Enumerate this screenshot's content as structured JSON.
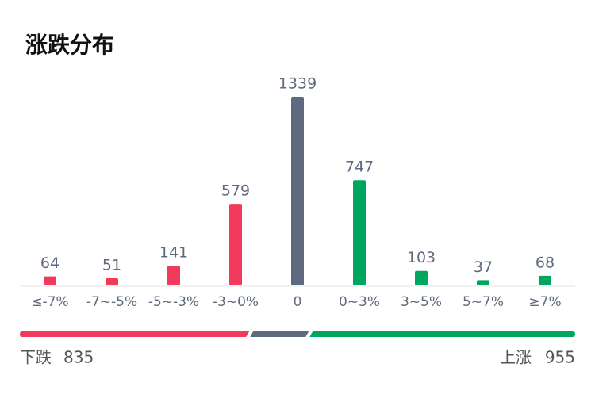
{
  "chart_data": {
    "type": "bar",
    "title": "涨跌分布",
    "categories": [
      "≤-7%",
      "-7~-5%",
      "-5~-3%",
      "-3~0%",
      "0",
      "0~3%",
      "3~5%",
      "5~7%",
      "≥7%"
    ],
    "values": [
      64,
      51,
      141,
      579,
      1339,
      747,
      103,
      37,
      68
    ],
    "colors": [
      "#f23b5c",
      "#f23b5c",
      "#f23b5c",
      "#f23b5c",
      "#5f6a7e",
      "#00a65e",
      "#00a65e",
      "#00a65e",
      "#00a65e"
    ],
    "summary": {
      "down_label": "下跌",
      "down": 835,
      "up_label": "上涨",
      "up": 955
    }
  }
}
